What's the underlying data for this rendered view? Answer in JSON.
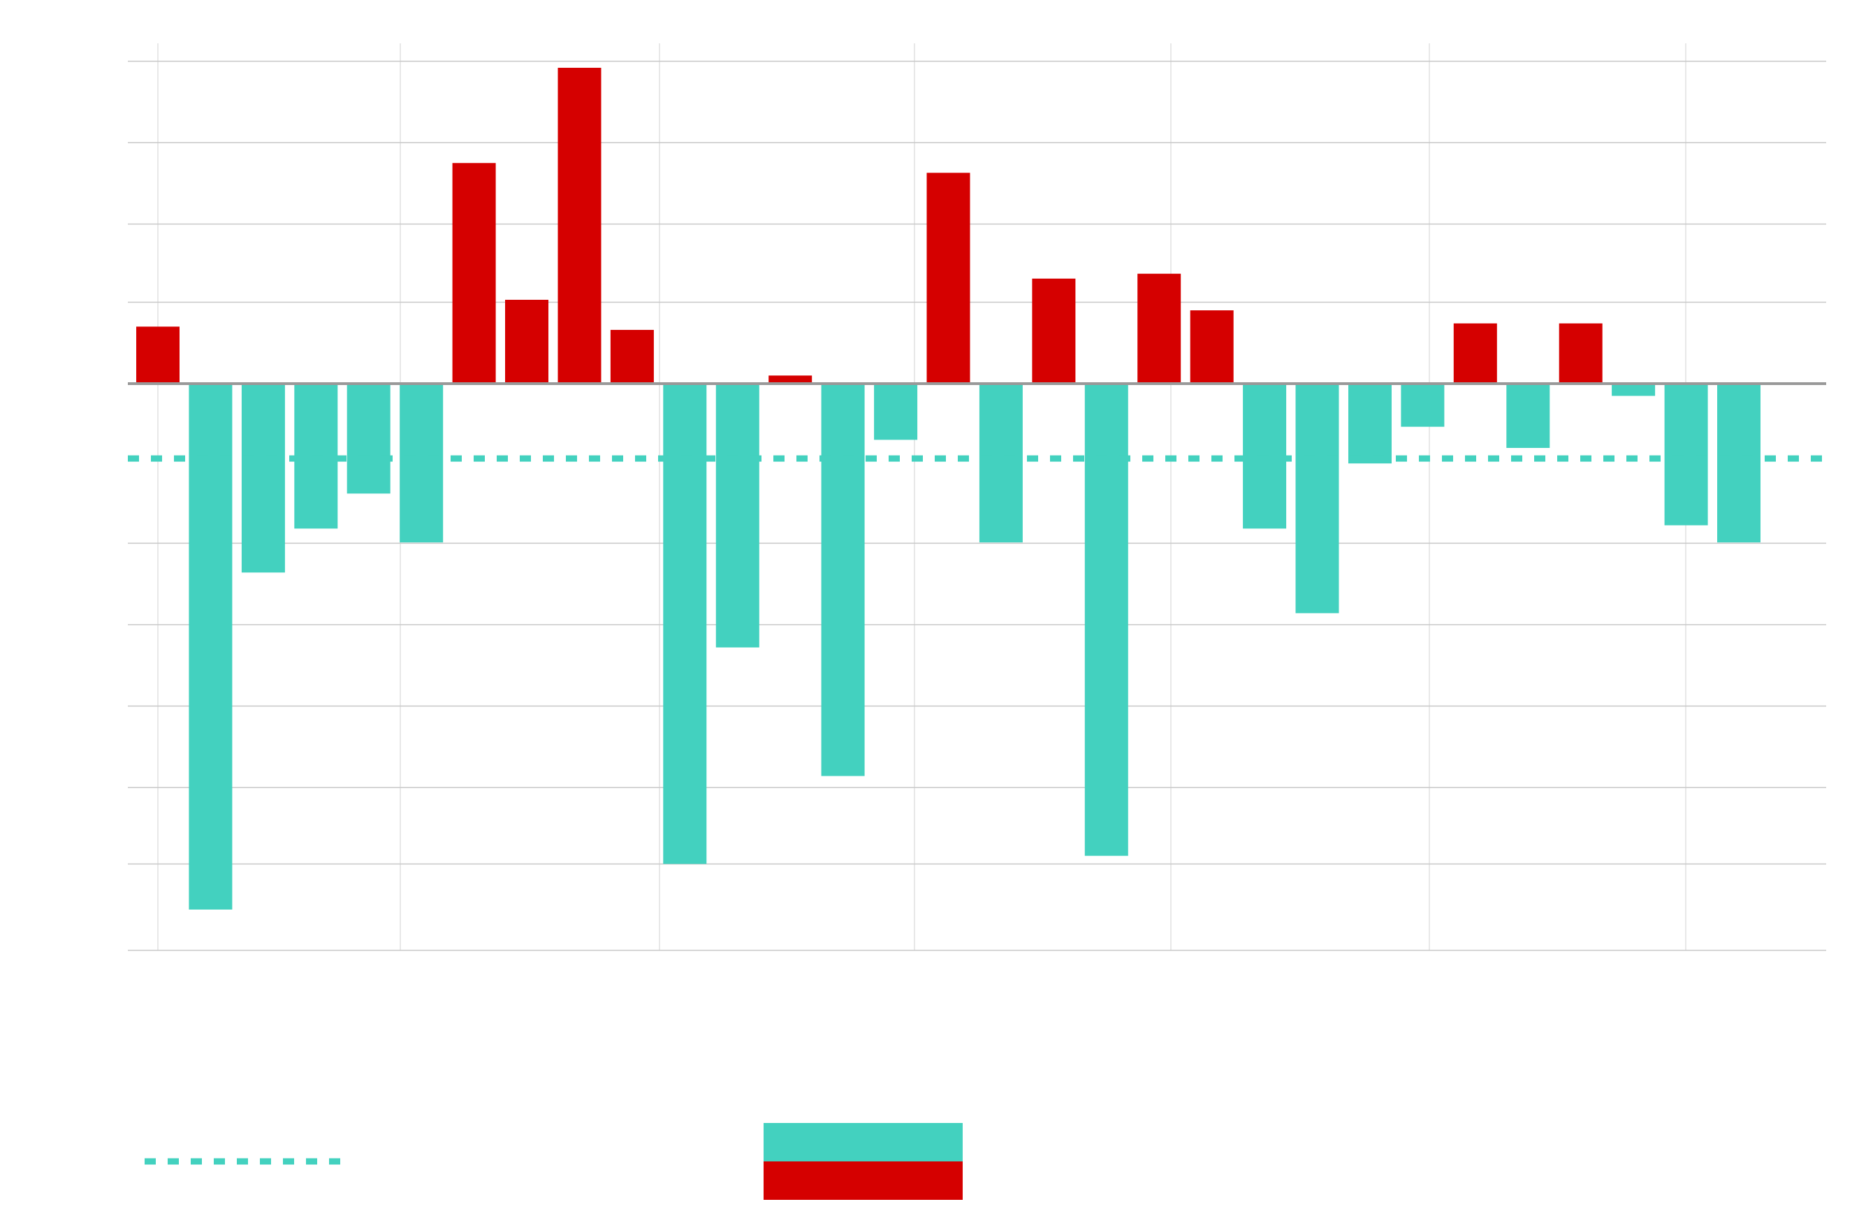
{
  "chart_data": {
    "type": "bar",
    "title": "",
    "xlabel": "",
    "ylabel": "",
    "grid": true,
    "legend_placement": "bottom",
    "ylim": [
      -7.0,
      4.1
    ],
    "horizontal_grid_values": [
      3.96,
      2.96,
      1.96,
      1.0,
      0,
      -1.96,
      -2.96,
      -3.96,
      -4.96,
      -5.9
    ],
    "vertical_grid_count": 7,
    "reference_line": {
      "value": -0.92,
      "style": "dotted"
    },
    "values": [
      0.7,
      -6.46,
      -2.32,
      -1.78,
      -1.35,
      -1.95,
      2.71,
      1.03,
      3.88,
      0.66,
      -5.9,
      -3.24,
      0.1,
      -4.82,
      -0.69,
      2.59,
      -1.95,
      1.29,
      -5.8,
      1.35,
      0.9,
      -1.78,
      -2.82,
      -0.98,
      -0.53,
      0.74,
      -0.79,
      0.74,
      -0.15,
      -1.74,
      -1.95
    ],
    "colors": {
      "positive": "#d50000",
      "negative": "#43d1bf",
      "axis": "#999999",
      "grid": "#c8c8c8",
      "vgrid": "#e0e0e0"
    },
    "legend": {
      "line_entry": {
        "label": "",
        "style": "dotted",
        "color": "#43d1bf"
      },
      "bar_entry": {
        "label": "",
        "colors": [
          "#43d1bf",
          "#d50000"
        ]
      }
    }
  }
}
